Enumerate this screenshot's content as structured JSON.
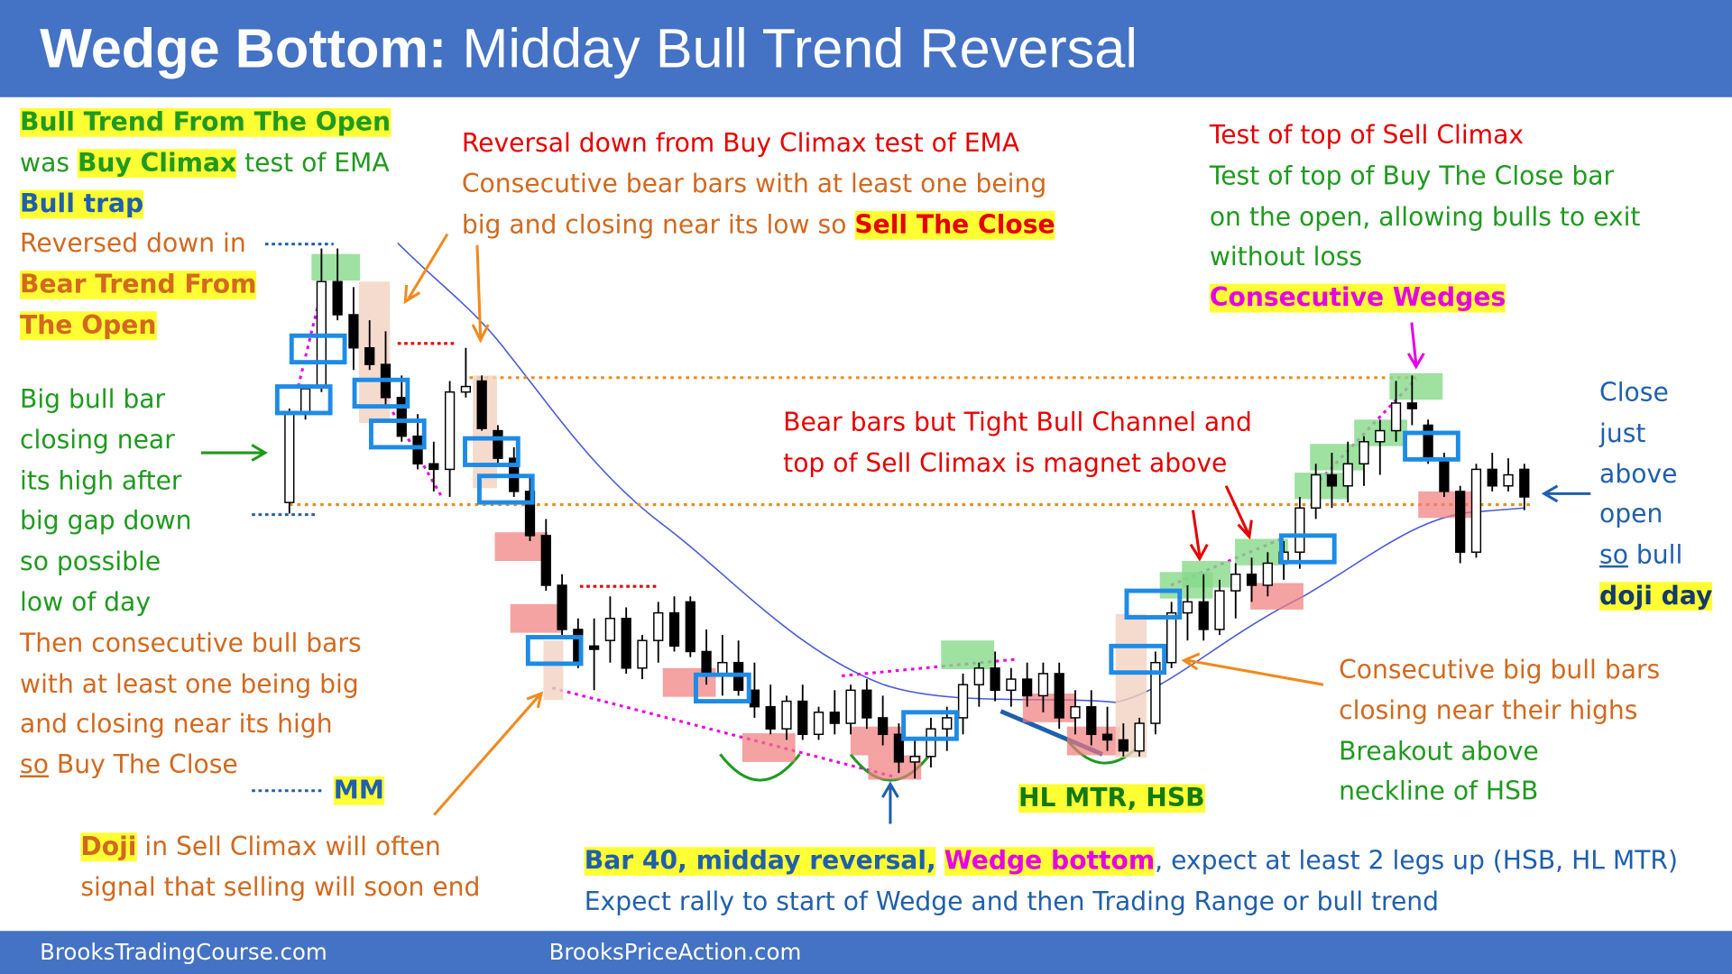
{
  "header": {
    "title_bold": "Wedge Bottom:",
    "title_rest": "Midday Bull Trend Reversal"
  },
  "footer": {
    "left": "BrooksTradingCourse.com",
    "center": "BrooksPriceAction.com"
  },
  "chart_data": {
    "type": "candlestick",
    "ylim": [
      0,
      520
    ],
    "candles": [
      [
        265,
        350,
        255,
        345
      ],
      [
        345,
        370,
        340,
        368
      ],
      [
        370,
        495,
        365,
        465
      ],
      [
        465,
        495,
        430,
        435
      ],
      [
        435,
        460,
        385,
        405
      ],
      [
        405,
        430,
        385,
        390
      ],
      [
        390,
        420,
        350,
        360
      ],
      [
        360,
        380,
        320,
        325
      ],
      [
        325,
        345,
        295,
        300
      ],
      [
        300,
        320,
        275,
        295
      ],
      [
        295,
        375,
        270,
        365
      ],
      [
        365,
        405,
        360,
        370
      ],
      [
        375,
        380,
        330,
        332
      ],
      [
        330,
        335,
        300,
        305
      ],
      [
        305,
        315,
        270,
        275
      ],
      [
        275,
        290,
        230,
        235
      ],
      [
        235,
        250,
        185,
        190
      ],
      [
        190,
        200,
        145,
        150
      ],
      [
        150,
        160,
        115,
        120
      ],
      [
        135,
        160,
        95,
        132
      ],
      [
        140,
        180,
        120,
        160
      ],
      [
        160,
        170,
        110,
        115
      ],
      [
        115,
        145,
        105,
        140
      ],
      [
        140,
        175,
        120,
        165
      ],
      [
        165,
        180,
        130,
        135
      ],
      [
        175,
        180,
        125,
        130
      ],
      [
        130,
        150,
        100,
        110
      ],
      [
        110,
        145,
        90,
        120
      ],
      [
        120,
        140,
        90,
        95
      ],
      [
        95,
        120,
        70,
        80
      ],
      [
        80,
        100,
        55,
        60
      ],
      [
        60,
        90,
        50,
        85
      ],
      [
        85,
        100,
        50,
        55
      ],
      [
        55,
        80,
        50,
        75
      ],
      [
        75,
        95,
        55,
        65
      ],
      [
        65,
        100,
        55,
        95
      ],
      [
        95,
        105,
        60,
        70
      ],
      [
        70,
        90,
        45,
        55
      ],
      [
        55,
        65,
        20,
        30
      ],
      [
        30,
        50,
        15,
        35
      ],
      [
        35,
        70,
        25,
        60
      ],
      [
        60,
        80,
        40,
        70
      ],
      [
        70,
        110,
        55,
        100
      ],
      [
        100,
        120,
        80,
        115
      ],
      [
        115,
        130,
        85,
        95
      ],
      [
        95,
        115,
        80,
        105
      ],
      [
        105,
        120,
        80,
        90
      ],
      [
        90,
        120,
        75,
        110
      ],
      [
        110,
        120,
        60,
        70
      ],
      [
        70,
        95,
        55,
        80
      ],
      [
        80,
        95,
        45,
        55
      ],
      [
        55,
        80,
        40,
        50
      ],
      [
        50,
        65,
        35,
        40
      ],
      [
        40,
        70,
        35,
        65
      ],
      [
        65,
        130,
        55,
        120
      ],
      [
        120,
        175,
        115,
        165
      ],
      [
        165,
        190,
        140,
        175
      ],
      [
        175,
        200,
        140,
        150
      ],
      [
        150,
        195,
        145,
        185
      ],
      [
        185,
        210,
        160,
        200
      ],
      [
        200,
        215,
        175,
        190
      ],
      [
        190,
        220,
        180,
        210
      ],
      [
        210,
        230,
        195,
        220
      ],
      [
        220,
        270,
        205,
        260
      ],
      [
        260,
        300,
        250,
        290
      ],
      [
        290,
        310,
        260,
        280
      ],
      [
        280,
        320,
        265,
        300
      ],
      [
        300,
        325,
        280,
        320
      ],
      [
        320,
        340,
        290,
        330
      ],
      [
        330,
        375,
        320,
        355
      ],
      [
        355,
        380,
        335,
        350
      ],
      [
        335,
        340,
        300,
        305
      ],
      [
        305,
        310,
        270,
        275
      ],
      [
        275,
        280,
        210,
        220
      ],
      [
        220,
        300,
        215,
        295
      ],
      [
        295,
        310,
        275,
        280
      ],
      [
        280,
        305,
        275,
        290
      ],
      [
        295,
        300,
        258,
        270
      ]
    ]
  },
  "notes": {
    "a": [
      "Bull Trend From The Open",
      "was",
      "Buy Climax",
      "test of EMA",
      "Bull trap",
      "Reversed down in",
      "Bear Trend From",
      "The Open"
    ],
    "b": [
      "Big bull bar",
      "closing near",
      "its high after",
      "big gap down",
      "so possible",
      "low of day",
      "Then consecutive bull bars",
      "with at least one being big",
      "and closing near its high",
      "so",
      "Buy The Close"
    ],
    "mm": "MM",
    "c": [
      "Doji",
      "in Sell Climax will often",
      "signal that selling will soon end"
    ],
    "d": [
      "Reversal down from Buy Climax test of EMA",
      "Consecutive bear bars with at least one being",
      "big and closing near its low so",
      "Sell The Close"
    ],
    "e": [
      "Test of top of Sell Climax",
      "Test of top of Buy The Close bar",
      "on the open, allowing bulls to exit",
      "without loss",
      "Consecutive Wedges"
    ],
    "f": [
      "Bear bars but Tight Bull Channel and",
      "top of Sell Climax is magnet above"
    ],
    "g": [
      "Close",
      "just",
      "above",
      "open",
      "so",
      "bull",
      "doji day"
    ],
    "h": [
      "Consecutive big bull bars",
      "closing near their highs",
      "Breakout above",
      "neckline of HSB"
    ],
    "i": "HL MTR, HSB",
    "j": [
      "Bar 40, midday reversal,",
      "Wedge bottom",
      ", expect at least 2 legs up (HSB, HL MTR)",
      "Expect rally to start of Wedge and then Trading Range or bull trend"
    ]
  }
}
